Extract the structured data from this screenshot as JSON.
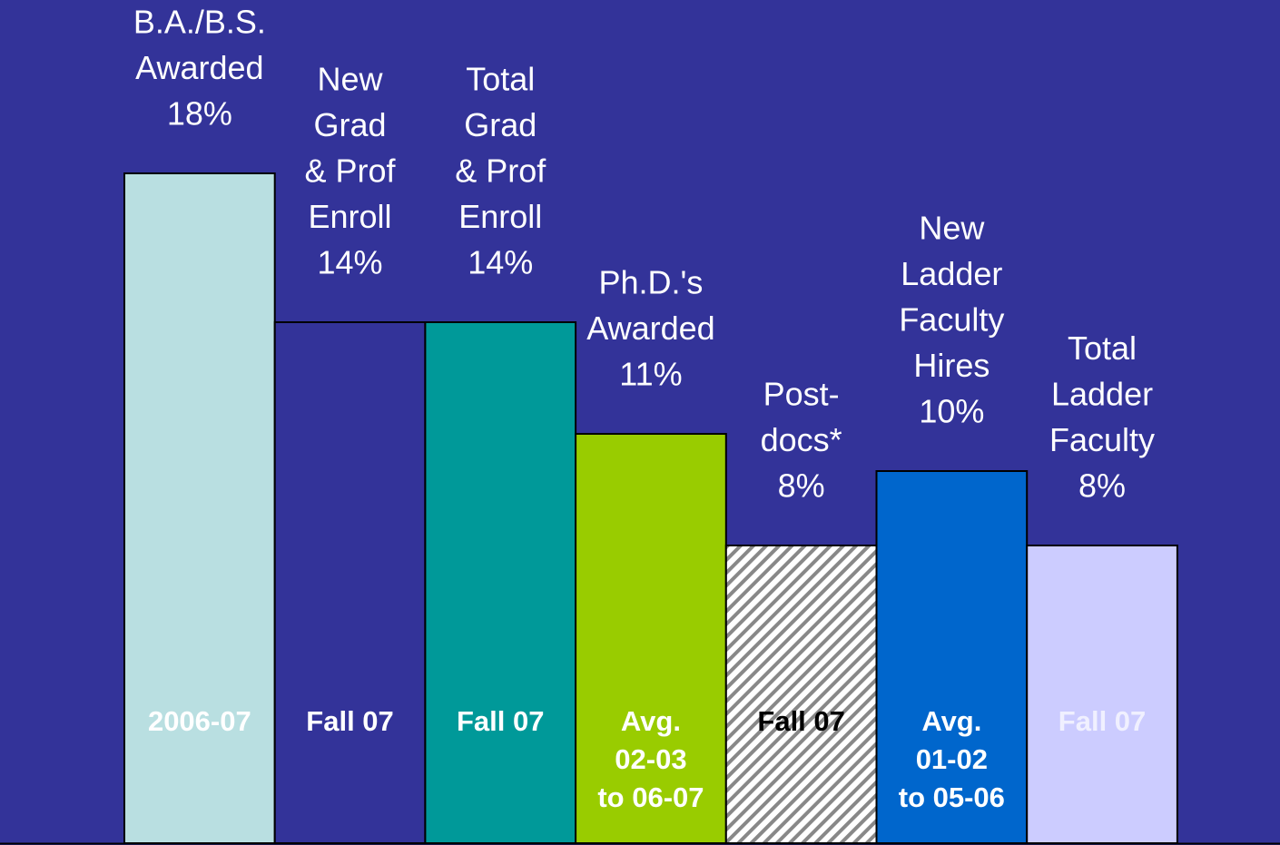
{
  "chart_data": {
    "type": "bar",
    "categories": [
      [
        "B.A./B.S.",
        "Awarded"
      ],
      [
        "New",
        "Grad",
        "& Prof",
        "Enroll"
      ],
      [
        "Total",
        "Grad",
        "& Prof",
        "Enroll"
      ],
      [
        "Ph.D.'s",
        "Awarded"
      ],
      [
        "Post-",
        "docs*"
      ],
      [
        "New",
        "Ladder",
        "Faculty",
        "Hires"
      ],
      [
        "Total",
        "Ladder",
        "Faculty"
      ]
    ],
    "values": [
      18,
      14,
      14,
      11,
      8,
      10,
      8
    ],
    "value_labels": [
      "18%",
      "14%",
      "14%",
      "11%",
      "8%",
      "10%",
      "8%"
    ],
    "periods": [
      [
        "2006-07"
      ],
      [
        "Fall 07"
      ],
      [
        "Fall 07"
      ],
      [
        "Avg.",
        "02-03",
        "to 06-07"
      ],
      [
        "Fall 07"
      ],
      [
        "Avg.",
        "01-02",
        "to 05-06"
      ],
      [
        "Fall 07"
      ]
    ],
    "colors": [
      "#b9dfe1",
      "#333399",
      "#009999",
      "#99cc00",
      "hatched",
      "#0066cc",
      "#ccccff"
    ],
    "period_colors": [
      "#ffffff",
      "#ffffff",
      "#ffffff",
      "#ffffff",
      "#000000",
      "#ffffff",
      "#f0f0ff"
    ]
  }
}
